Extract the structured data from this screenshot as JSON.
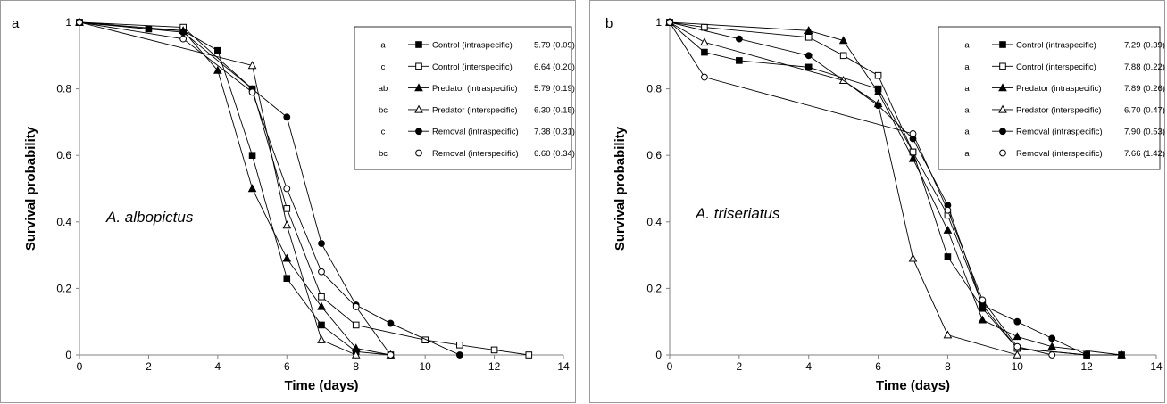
{
  "chart_data": [
    {
      "type": "line",
      "panel_label": "a",
      "species": "A. albopictus",
      "xlabel": "Time (days)",
      "ylabel": "Survival probability",
      "xlim": [
        0,
        14
      ],
      "ylim": [
        0,
        1
      ],
      "x_ticks": [
        "0",
        "2",
        "4",
        "6",
        "8",
        "10",
        "12",
        "14"
      ],
      "y_ticks": [
        "0",
        "0.2",
        "0.4",
        "0.6",
        "0.8",
        "1"
      ],
      "grid": false,
      "legend_position": "top-right",
      "series": [
        {
          "name": "Control (intraspecific)",
          "letter": "a",
          "stat": "5.79 (0.09)",
          "marker": "square",
          "filled": true,
          "points": [
            [
              0,
              1
            ],
            [
              2,
              0.98
            ],
            [
              3,
              0.975
            ],
            [
              4,
              0.915
            ],
            [
              5,
              0.6
            ],
            [
              6,
              0.23
            ],
            [
              7,
              0.09
            ],
            [
              8,
              0.01
            ],
            [
              9,
              0
            ]
          ]
        },
        {
          "name": "Control (interspecific)",
          "letter": "c",
          "stat": "6.64 (0.20)",
          "marker": "square",
          "filled": false,
          "points": [
            [
              0,
              1
            ],
            [
              3,
              0.985
            ],
            [
              5,
              0.8
            ],
            [
              6,
              0.44
            ],
            [
              7,
              0.175
            ],
            [
              8,
              0.09
            ],
            [
              10,
              0.045
            ],
            [
              11,
              0.03
            ],
            [
              12,
              0.015
            ],
            [
              13,
              0
            ]
          ]
        },
        {
          "name": "Predator (intraspecific)",
          "letter": "ab",
          "stat": "5.79 (0.19)",
          "marker": "triangle",
          "filled": true,
          "points": [
            [
              0,
              1
            ],
            [
              3,
              0.975
            ],
            [
              4,
              0.855
            ],
            [
              5,
              0.5
            ],
            [
              6,
              0.29
            ],
            [
              7,
              0.145
            ],
            [
              8,
              0.02
            ],
            [
              9,
              0
            ]
          ]
        },
        {
          "name": "Predator (interspecific)",
          "letter": "bc",
          "stat": "6.30 (0.15)",
          "marker": "triangle",
          "filled": false,
          "points": [
            [
              0,
              1
            ],
            [
              5,
              0.87
            ],
            [
              6,
              0.39
            ],
            [
              7,
              0.045
            ],
            [
              8,
              0
            ]
          ]
        },
        {
          "name": "Removal (intraspecific)",
          "letter": "c",
          "stat": "7.38 (0.31)",
          "marker": "circle",
          "filled": true,
          "points": [
            [
              0,
              1
            ],
            [
              3,
              0.97
            ],
            [
              5,
              0.8
            ],
            [
              6,
              0.715
            ],
            [
              7,
              0.335
            ],
            [
              8,
              0.15
            ],
            [
              9,
              0.095
            ],
            [
              11,
              0
            ]
          ]
        },
        {
          "name": "Removal (interspecific)",
          "letter": "bc",
          "stat": "6.60 (0.34)",
          "marker": "circle",
          "filled": false,
          "points": [
            [
              0,
              1
            ],
            [
              3,
              0.95
            ],
            [
              5,
              0.79
            ],
            [
              6,
              0.5
            ],
            [
              7,
              0.25
            ],
            [
              8,
              0.145
            ],
            [
              9,
              0
            ]
          ]
        }
      ]
    },
    {
      "type": "line",
      "panel_label": "b",
      "species": "A. triseriatus",
      "xlabel": "Time (days)",
      "ylabel": "Survival probability",
      "xlim": [
        0,
        14
      ],
      "ylim": [
        0,
        1
      ],
      "x_ticks": [
        "0",
        "2",
        "4",
        "6",
        "8",
        "10",
        "12",
        "14"
      ],
      "y_ticks": [
        "0",
        "0.2",
        "0.4",
        "0.6",
        "0.8",
        "1"
      ],
      "grid": false,
      "legend_position": "top-right",
      "series": [
        {
          "name": "Control (intraspecific)",
          "letter": "a",
          "stat": "7.29 (0.39)",
          "marker": "square",
          "filled": true,
          "points": [
            [
              0,
              1
            ],
            [
              1,
              0.91
            ],
            [
              2,
              0.885
            ],
            [
              4,
              0.865
            ],
            [
              6,
              0.8
            ],
            [
              7,
              0.61
            ],
            [
              8,
              0.295
            ],
            [
              9,
              0.14
            ],
            [
              10,
              0.02
            ],
            [
              12,
              0
            ],
            [
              13,
              0
            ]
          ]
        },
        {
          "name": "Control (interspecific)",
          "letter": "a",
          "stat": "7.88 (0.22)",
          "marker": "square",
          "filled": false,
          "points": [
            [
              0,
              1
            ],
            [
              1,
              0.985
            ],
            [
              4,
              0.955
            ],
            [
              5,
              0.9
            ],
            [
              6,
              0.84
            ],
            [
              7,
              0.61
            ],
            [
              8,
              0.42
            ],
            [
              9,
              0.15
            ],
            [
              10,
              0.02
            ],
            [
              12,
              0
            ]
          ]
        },
        {
          "name": "Predator (intraspecific)",
          "letter": "a",
          "stat": "7.89 (0.26)",
          "marker": "triangle",
          "filled": true,
          "points": [
            [
              0,
              1
            ],
            [
              4,
              0.975
            ],
            [
              5,
              0.945
            ],
            [
              6,
              0.79
            ],
            [
              7,
              0.59
            ],
            [
              8,
              0.375
            ],
            [
              9,
              0.105
            ],
            [
              10,
              0.055
            ],
            [
              11,
              0.025
            ],
            [
              13,
              0
            ]
          ]
        },
        {
          "name": "Predator (interspecific)",
          "letter": "a",
          "stat": "6.70 (0.47)",
          "marker": "triangle",
          "filled": false,
          "points": [
            [
              0,
              1
            ],
            [
              1,
              0.94
            ],
            [
              5,
              0.825
            ],
            [
              6,
              0.755
            ],
            [
              7,
              0.29
            ],
            [
              8,
              0.06
            ],
            [
              10,
              0
            ]
          ]
        },
        {
          "name": "Removal (intraspecific)",
          "letter": "a",
          "stat": "7.90 (0.53)",
          "marker": "circle",
          "filled": true,
          "points": [
            [
              0,
              1
            ],
            [
              2,
              0.95
            ],
            [
              4,
              0.9
            ],
            [
              6,
              0.75
            ],
            [
              7,
              0.65
            ],
            [
              8,
              0.45
            ],
            [
              9,
              0.15
            ],
            [
              10,
              0.1
            ],
            [
              11,
              0.05
            ],
            [
              12,
              0
            ]
          ]
        },
        {
          "name": "Removal (interspecific)",
          "letter": "a",
          "stat": "7.66 (1.42)",
          "marker": "circle",
          "filled": false,
          "points": [
            [
              0,
              1
            ],
            [
              1,
              0.835
            ],
            [
              7,
              0.665
            ],
            [
              8,
              0.435
            ],
            [
              9,
              0.165
            ],
            [
              10,
              0.025
            ],
            [
              11,
              0
            ]
          ]
        }
      ]
    }
  ]
}
